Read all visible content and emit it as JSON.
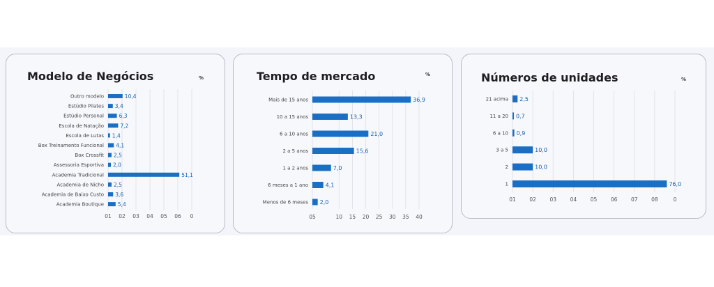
{
  "chart_data": [
    {
      "type": "bar",
      "orientation": "horizontal",
      "title": "Modelo de Negócios",
      "unit_label": "%",
      "categories": [
        "Outro modelo",
        "Estúdio Pilates",
        "Estúdio Personal",
        "Escola de Natação",
        "Escola de Lutas",
        "Box Treinamento Funcional",
        "Box Crossfit",
        "Assessoria Esportiva",
        "Academia Tradicional",
        "Academia de Nicho",
        "Academia de Baixo Custo",
        "Academia Boutique"
      ],
      "values": [
        10.4,
        3.4,
        6.3,
        7.2,
        1.4,
        4.1,
        2.5,
        2.0,
        51.1,
        2.5,
        3.6,
        5.4
      ],
      "value_labels": [
        "10,4",
        "3,4",
        "6,3",
        "7,2",
        "1,4",
        "4,1",
        "2,5",
        "2,0",
        "51,1",
        "2,5",
        "3,6",
        "5,4"
      ],
      "xlim": [
        0,
        60
      ],
      "x_ticks": [
        0,
        10,
        20,
        30,
        40,
        50,
        60
      ],
      "x_tick_labels": [
        "01",
        "02",
        "03",
        "04",
        "05",
        "06",
        "0"
      ],
      "grid": true,
      "bar_color": "#1a6fc4"
    },
    {
      "type": "bar",
      "orientation": "horizontal",
      "title": "Tempo de mercado",
      "unit_label": "%",
      "categories": [
        "Mais de 15 anos",
        "10 a 15 anos",
        "6 a 10 anos",
        "2 a 5 anos",
        "1 a 2 anos",
        "6 meses a 1 ano",
        "Menos de 6 meses"
      ],
      "values": [
        36.9,
        13.3,
        21.0,
        15.6,
        7.0,
        4.1,
        2.0
      ],
      "value_labels": [
        "36,9",
        "13,3",
        "21,0",
        "15,6",
        "7,0",
        "4,1",
        "2,0"
      ],
      "xlim": [
        0,
        40
      ],
      "x_ticks": [
        0,
        10,
        15,
        20,
        25,
        30,
        35,
        40
      ],
      "x_tick_labels": [
        "05",
        "10",
        "15",
        "20",
        "25",
        "30",
        "35",
        "40"
      ],
      "grid": true,
      "bar_color": "#1a6fc4"
    },
    {
      "type": "bar",
      "orientation": "horizontal",
      "title": "Números de unidades",
      "unit_label": "%",
      "categories": [
        "21 acima",
        "11 a 20",
        "6 a 10",
        "3 a 5",
        "2",
        "1"
      ],
      "values": [
        2.5,
        0.7,
        0.9,
        10.0,
        10.0,
        76.0
      ],
      "value_labels": [
        "2,5",
        "0,7",
        "0,9",
        "10,0",
        "10,0",
        "76,0"
      ],
      "xlim": [
        0,
        80
      ],
      "x_ticks": [
        0,
        10,
        20,
        30,
        40,
        50,
        60,
        70,
        80
      ],
      "x_tick_labels": [
        "01",
        "02",
        "03",
        "04",
        "05",
        "06",
        "07",
        "08",
        "0"
      ],
      "grid": true,
      "bar_color": "#1a6fc4"
    }
  ]
}
